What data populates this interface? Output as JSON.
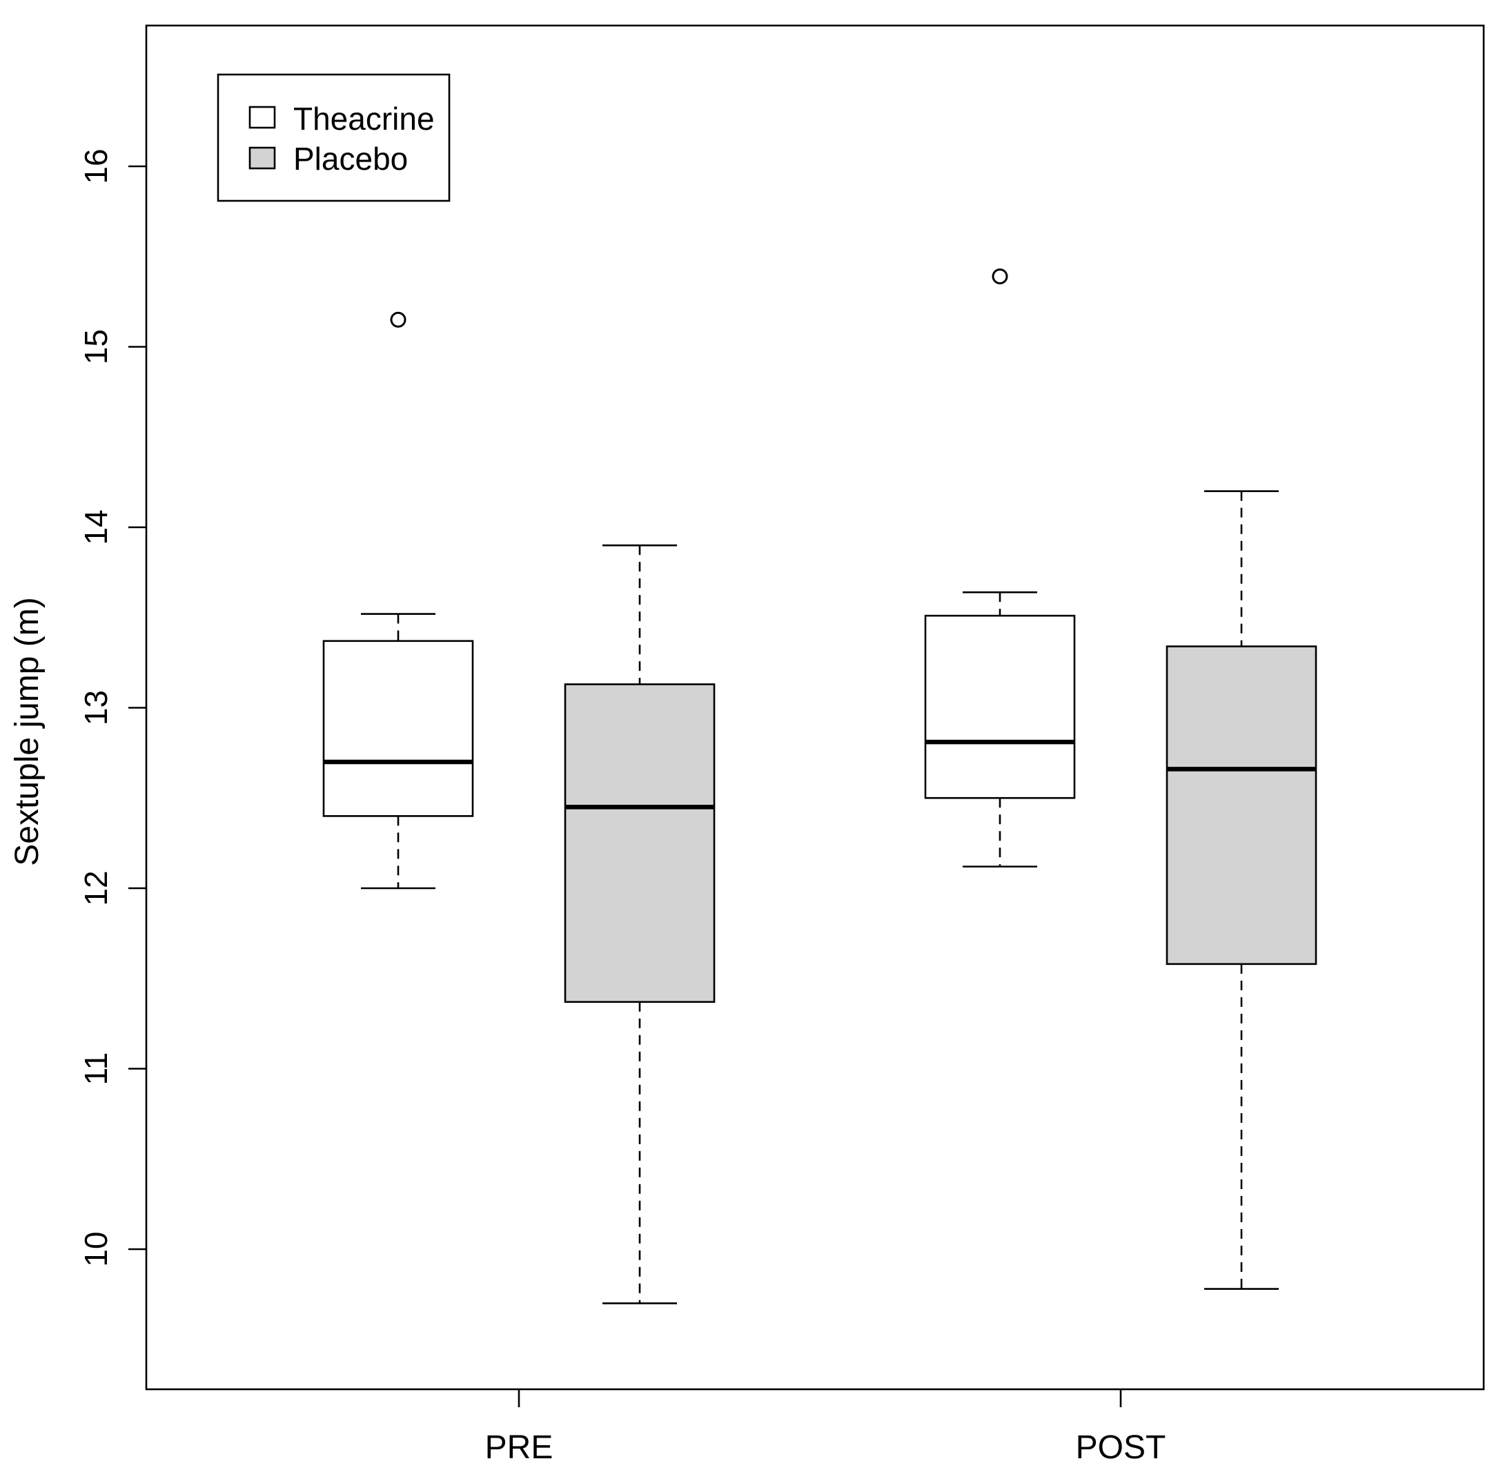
{
  "chart_data": {
    "type": "boxplot",
    "title": "",
    "xlabel": "",
    "ylabel": "Sextuple jump (m)",
    "ylim": [
      9.2,
      16.75
    ],
    "yticks": [
      10,
      11,
      12,
      13,
      14,
      15,
      16
    ],
    "categories": [
      "PRE",
      "POST"
    ],
    "grid": false,
    "legend_position": "top-left",
    "series": [
      {
        "name": "Theacrine",
        "fill": "#ffffff",
        "boxes": [
          {
            "category": "PRE",
            "whisker_low": 12.0,
            "q1": 12.4,
            "median": 12.7,
            "q3": 13.37,
            "whisker_high": 13.52,
            "outliers": [
              15.15
            ]
          },
          {
            "category": "POST",
            "whisker_low": 12.12,
            "q1": 12.5,
            "median": 12.81,
            "q3": 13.51,
            "whisker_high": 13.64,
            "outliers": [
              15.39
            ]
          }
        ]
      },
      {
        "name": "Placebo",
        "fill": "#d3d3d3",
        "boxes": [
          {
            "category": "PRE",
            "whisker_low": 9.7,
            "q1": 11.37,
            "median": 12.45,
            "q3": 13.13,
            "whisker_high": 13.9,
            "outliers": []
          },
          {
            "category": "POST",
            "whisker_low": 9.78,
            "q1": 11.58,
            "median": 12.66,
            "q3": 13.34,
            "whisker_high": 14.2,
            "outliers": []
          }
        ]
      }
    ]
  }
}
